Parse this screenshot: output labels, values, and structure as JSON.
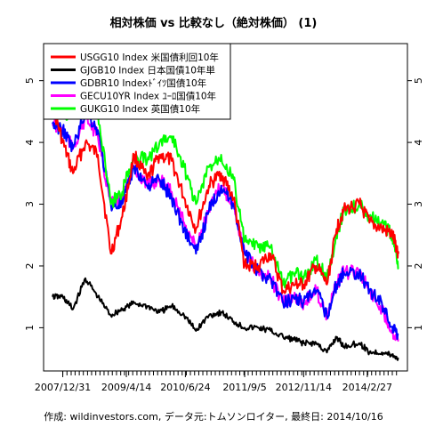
{
  "chart_data": {
    "type": "line",
    "title": "相対株価 vs 比較なし（絶対株価） (1)",
    "footer": "作成: wildinvestors.com, データ元:トムソンロイター, 最終日: 2014/10/16",
    "xlabel": "",
    "ylabel": "",
    "x_tick_labels": [
      "2007/12/31",
      "2009/4/14",
      "2010/6/24",
      "2011/9/5",
      "2012/11/14",
      "2014/2/27"
    ],
    "x_tick_dates": [
      "2007-12-31",
      "2009-04-14",
      "2010-06-24",
      "2011-09-05",
      "2012-11-14",
      "2014-02-27"
    ],
    "xlim": [
      "2007-10-16",
      "2014-10-16"
    ],
    "ylim": [
      0.3,
      5.6
    ],
    "y_ticks": [
      1,
      2,
      3,
      4,
      5
    ],
    "grid": false,
    "legend_position": "top-left",
    "series": [
      {
        "name": "USGG10 Index 米国債利回10年",
        "color": "#ff0000",
        "x": [
          "2007-10-16",
          "2007-12-31",
          "2008-03-15",
          "2008-06-15",
          "2008-09-15",
          "2008-12-20",
          "2009-03-15",
          "2009-06-10",
          "2009-09-15",
          "2009-12-15",
          "2010-03-15",
          "2010-06-15",
          "2010-09-10",
          "2010-12-15",
          "2011-03-15",
          "2011-06-15",
          "2011-09-05",
          "2011-12-15",
          "2012-03-15",
          "2012-06-15",
          "2012-09-15",
          "2012-11-14",
          "2013-02-15",
          "2013-05-05",
          "2013-07-15",
          "2013-09-05",
          "2013-12-31",
          "2014-03-15",
          "2014-06-15",
          "2014-09-01",
          "2014-10-16"
        ],
        "values": [
          4.6,
          4.0,
          3.5,
          4.0,
          3.8,
          2.2,
          2.8,
          3.8,
          3.4,
          3.8,
          3.7,
          3.1,
          2.6,
          3.3,
          3.5,
          3.1,
          2.0,
          2.0,
          2.2,
          1.6,
          1.7,
          1.7,
          2.0,
          1.7,
          2.6,
          2.9,
          3.0,
          2.7,
          2.6,
          2.5,
          2.2
        ]
      },
      {
        "name": "GJGB10 Index 日本国債10年単",
        "color": "#000000",
        "x": [
          "2007-10-16",
          "2007-12-31",
          "2008-03-15",
          "2008-06-15",
          "2008-09-15",
          "2008-12-20",
          "2009-03-15",
          "2009-06-10",
          "2009-09-15",
          "2009-12-15",
          "2010-03-15",
          "2010-06-15",
          "2010-09-10",
          "2010-12-15",
          "2011-03-15",
          "2011-06-15",
          "2011-09-05",
          "2011-12-15",
          "2012-03-15",
          "2012-06-15",
          "2012-09-15",
          "2012-11-14",
          "2013-02-15",
          "2013-05-05",
          "2013-07-15",
          "2013-09-05",
          "2013-12-31",
          "2014-03-15",
          "2014-06-15",
          "2014-09-01",
          "2014-10-16"
        ],
        "values": [
          1.5,
          1.5,
          1.3,
          1.8,
          1.5,
          1.2,
          1.3,
          1.4,
          1.35,
          1.25,
          1.35,
          1.2,
          0.95,
          1.2,
          1.25,
          1.1,
          1.0,
          1.0,
          0.95,
          0.85,
          0.8,
          0.75,
          0.75,
          0.6,
          0.85,
          0.7,
          0.75,
          0.6,
          0.6,
          0.55,
          0.5
        ]
      },
      {
        "name": "GDBR10 Indexﾄﾞｲﾂ国債10年",
        "color": "#0000ff",
        "x": [
          "2007-10-16",
          "2007-12-31",
          "2008-03-15",
          "2008-06-15",
          "2008-09-15",
          "2008-12-20",
          "2009-03-15",
          "2009-06-10",
          "2009-09-15",
          "2009-12-15",
          "2010-03-15",
          "2010-06-15",
          "2010-09-10",
          "2010-12-15",
          "2011-03-15",
          "2011-06-15",
          "2011-09-05",
          "2011-12-15",
          "2012-03-15",
          "2012-06-15",
          "2012-09-15",
          "2012-11-14",
          "2013-02-15",
          "2013-05-05",
          "2013-07-15",
          "2013-09-05",
          "2013-12-31",
          "2014-03-15",
          "2014-06-15",
          "2014-09-01",
          "2014-10-16"
        ],
        "values": [
          4.3,
          4.2,
          3.9,
          4.5,
          4.2,
          3.0,
          3.0,
          3.6,
          3.3,
          3.4,
          3.1,
          2.6,
          2.2,
          2.9,
          3.3,
          3.0,
          2.2,
          1.9,
          1.8,
          1.4,
          1.5,
          1.4,
          1.6,
          1.2,
          1.7,
          1.9,
          1.9,
          1.6,
          1.4,
          1.0,
          0.9
        ]
      },
      {
        "name": "GECU10YR Index ﾕｰﾛ国債10年",
        "color": "#ff00ff",
        "x": [
          "2007-10-16",
          "2007-12-31",
          "2008-03-15",
          "2008-06-15",
          "2008-09-15",
          "2008-12-20",
          "2009-03-15",
          "2009-06-10",
          "2009-09-15",
          "2009-12-15",
          "2010-03-15",
          "2010-06-15",
          "2010-09-10",
          "2010-12-15",
          "2011-03-15",
          "2011-06-15",
          "2011-09-05",
          "2011-12-15",
          "2012-03-15",
          "2012-06-15",
          "2012-09-15",
          "2012-11-14",
          "2013-02-15",
          "2013-05-05",
          "2013-07-15",
          "2013-09-05",
          "2013-12-31",
          "2014-03-15",
          "2014-06-15",
          "2014-09-01",
          "2014-10-16"
        ],
        "values": [
          4.3,
          4.2,
          3.9,
          4.4,
          4.1,
          3.0,
          3.1,
          3.6,
          3.3,
          3.4,
          3.2,
          2.7,
          2.3,
          2.9,
          3.3,
          3.0,
          2.2,
          1.9,
          1.8,
          1.4,
          1.5,
          1.4,
          1.6,
          1.2,
          1.7,
          1.9,
          1.9,
          1.6,
          1.3,
          0.95,
          0.8
        ]
      },
      {
        "name": "GUKG10 Index 英国債10年",
        "color": "#00ff00",
        "x": [
          "2007-10-16",
          "2007-12-31",
          "2008-03-15",
          "2008-06-15",
          "2008-09-15",
          "2008-12-20",
          "2009-03-15",
          "2009-06-10",
          "2009-09-15",
          "2009-12-15",
          "2010-03-15",
          "2010-06-15",
          "2010-09-10",
          "2010-12-15",
          "2011-03-15",
          "2011-06-15",
          "2011-09-05",
          "2011-12-15",
          "2012-03-15",
          "2012-06-15",
          "2012-09-15",
          "2012-11-14",
          "2013-02-15",
          "2013-05-05",
          "2013-07-15",
          "2013-09-05",
          "2013-12-31",
          "2014-03-15",
          "2014-06-15",
          "2014-09-01",
          "2014-10-16"
        ],
        "values": [
          4.7,
          4.5,
          4.4,
          5.1,
          4.5,
          3.0,
          3.2,
          3.8,
          3.7,
          4.0,
          4.1,
          3.6,
          3.0,
          3.6,
          3.8,
          3.4,
          2.4,
          2.3,
          2.3,
          1.7,
          1.9,
          1.8,
          2.1,
          1.8,
          2.5,
          2.9,
          3.0,
          2.8,
          2.7,
          2.5,
          1.95
        ]
      }
    ]
  }
}
